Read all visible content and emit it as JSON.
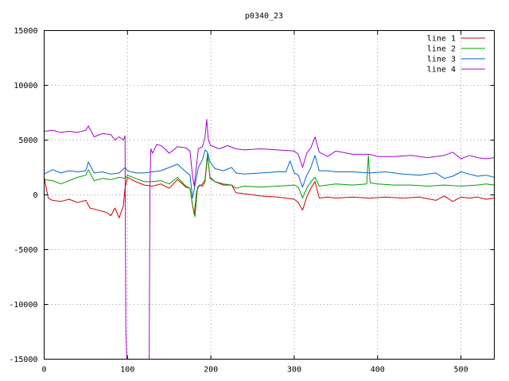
{
  "chart_data": {
    "type": "line",
    "title": "p0340_23",
    "xlabel": "",
    "ylabel": "",
    "xlim": [
      0,
      540
    ],
    "ylim": [
      -15000,
      15000
    ],
    "x_ticks": [
      0,
      100,
      200,
      300,
      400,
      500
    ],
    "y_ticks": [
      -15000,
      -10000,
      -5000,
      0,
      5000,
      10000,
      15000
    ],
    "grid": true,
    "legend_position": "top-right",
    "series": [
      {
        "name": "line 1",
        "color": "#cc0000",
        "points": [
          [
            0,
            1600
          ],
          [
            5,
            -300
          ],
          [
            10,
            -500
          ],
          [
            20,
            -600
          ],
          [
            30,
            -400
          ],
          [
            40,
            -700
          ],
          [
            50,
            -500
          ],
          [
            55,
            -1200
          ],
          [
            65,
            -1400
          ],
          [
            75,
            -1600
          ],
          [
            80,
            -1900
          ],
          [
            85,
            -1200
          ],
          [
            90,
            -2100
          ],
          [
            95,
            -1000
          ],
          [
            97,
            600
          ],
          [
            100,
            1600
          ],
          [
            110,
            1200
          ],
          [
            120,
            900
          ],
          [
            130,
            800
          ],
          [
            140,
            1000
          ],
          [
            150,
            600
          ],
          [
            160,
            1400
          ],
          [
            170,
            700
          ],
          [
            175,
            600
          ],
          [
            178,
            -900
          ],
          [
            180,
            -1800
          ],
          [
            183,
            300
          ],
          [
            186,
            900
          ],
          [
            190,
            800
          ],
          [
            193,
            1200
          ],
          [
            196,
            3600
          ],
          [
            199,
            1600
          ],
          [
            205,
            1200
          ],
          [
            215,
            900
          ],
          [
            225,
            900
          ],
          [
            230,
            200
          ],
          [
            240,
            100
          ],
          [
            260,
            -100
          ],
          [
            280,
            -200
          ],
          [
            300,
            -400
          ],
          [
            305,
            -700
          ],
          [
            310,
            -1400
          ],
          [
            315,
            -200
          ],
          [
            320,
            600
          ],
          [
            325,
            1200
          ],
          [
            330,
            -300
          ],
          [
            340,
            -200
          ],
          [
            350,
            -300
          ],
          [
            370,
            -200
          ],
          [
            390,
            -300
          ],
          [
            410,
            -200
          ],
          [
            430,
            -300
          ],
          [
            450,
            -200
          ],
          [
            470,
            -500
          ],
          [
            480,
            -100
          ],
          [
            490,
            -600
          ],
          [
            500,
            -200
          ],
          [
            510,
            -300
          ],
          [
            520,
            -200
          ],
          [
            530,
            -400
          ],
          [
            540,
            -300
          ]
        ]
      },
      {
        "name": "line 2",
        "color": "#00a000",
        "points": [
          [
            0,
            1400
          ],
          [
            10,
            1300
          ],
          [
            20,
            1000
          ],
          [
            30,
            1300
          ],
          [
            40,
            1600
          ],
          [
            50,
            1800
          ],
          [
            53,
            2300
          ],
          [
            60,
            1300
          ],
          [
            70,
            1500
          ],
          [
            80,
            1400
          ],
          [
            90,
            1600
          ],
          [
            97,
            1500
          ],
          [
            100,
            1800
          ],
          [
            110,
            1500
          ],
          [
            120,
            1200
          ],
          [
            130,
            1200
          ],
          [
            140,
            1300
          ],
          [
            150,
            1000
          ],
          [
            160,
            1600
          ],
          [
            170,
            800
          ],
          [
            175,
            600
          ],
          [
            178,
            -1000
          ],
          [
            181,
            -2000
          ],
          [
            184,
            700
          ],
          [
            190,
            1000
          ],
          [
            193,
            1400
          ],
          [
            196,
            3800
          ],
          [
            199,
            1500
          ],
          [
            205,
            1200
          ],
          [
            215,
            1000
          ],
          [
            225,
            900
          ],
          [
            230,
            600
          ],
          [
            240,
            800
          ],
          [
            260,
            700
          ],
          [
            280,
            800
          ],
          [
            300,
            900
          ],
          [
            305,
            700
          ],
          [
            310,
            -300
          ],
          [
            315,
            600
          ],
          [
            320,
            1200
          ],
          [
            325,
            1600
          ],
          [
            330,
            800
          ],
          [
            340,
            900
          ],
          [
            350,
            1000
          ],
          [
            370,
            900
          ],
          [
            387,
            1000
          ],
          [
            389,
            3600
          ],
          [
            391,
            1100
          ],
          [
            400,
            1000
          ],
          [
            420,
            900
          ],
          [
            440,
            900
          ],
          [
            460,
            800
          ],
          [
            480,
            900
          ],
          [
            500,
            800
          ],
          [
            520,
            900
          ],
          [
            530,
            1000
          ],
          [
            540,
            900
          ]
        ]
      },
      {
        "name": "line 3",
        "color": "#0066cc",
        "points": [
          [
            0,
            1900
          ],
          [
            10,
            2300
          ],
          [
            20,
            2000
          ],
          [
            30,
            2200
          ],
          [
            40,
            2100
          ],
          [
            50,
            2200
          ],
          [
            53,
            3000
          ],
          [
            60,
            2000
          ],
          [
            70,
            2100
          ],
          [
            80,
            1900
          ],
          [
            90,
            2000
          ],
          [
            97,
            2500
          ],
          [
            100,
            2200
          ],
          [
            110,
            2000
          ],
          [
            120,
            2000
          ],
          [
            130,
            2100
          ],
          [
            140,
            2200
          ],
          [
            150,
            2500
          ],
          [
            160,
            2800
          ],
          [
            170,
            2100
          ],
          [
            175,
            1800
          ],
          [
            178,
            -300
          ],
          [
            180,
            500
          ],
          [
            185,
            2500
          ],
          [
            190,
            3200
          ],
          [
            193,
            4100
          ],
          [
            196,
            3900
          ],
          [
            199,
            3000
          ],
          [
            205,
            2400
          ],
          [
            215,
            2200
          ],
          [
            225,
            2500
          ],
          [
            230,
            2000
          ],
          [
            240,
            1900
          ],
          [
            260,
            2000
          ],
          [
            280,
            2100
          ],
          [
            290,
            2100
          ],
          [
            295,
            3100
          ],
          [
            300,
            2000
          ],
          [
            305,
            1800
          ],
          [
            310,
            700
          ],
          [
            315,
            1800
          ],
          [
            320,
            2500
          ],
          [
            325,
            3600
          ],
          [
            330,
            2200
          ],
          [
            340,
            2200
          ],
          [
            350,
            2100
          ],
          [
            370,
            2100
          ],
          [
            390,
            2000
          ],
          [
            410,
            2100
          ],
          [
            430,
            1900
          ],
          [
            450,
            1800
          ],
          [
            470,
            2000
          ],
          [
            480,
            1500
          ],
          [
            490,
            1700
          ],
          [
            500,
            2100
          ],
          [
            510,
            1900
          ],
          [
            520,
            1700
          ],
          [
            530,
            1800
          ],
          [
            540,
            1600
          ]
        ]
      },
      {
        "name": "line 4",
        "color": "#aa00cc",
        "points": [
          [
            0,
            5800
          ],
          [
            10,
            5900
          ],
          [
            20,
            5700
          ],
          [
            30,
            5800
          ],
          [
            40,
            5700
          ],
          [
            50,
            5900
          ],
          [
            53,
            6300
          ],
          [
            60,
            5300
          ],
          [
            70,
            5600
          ],
          [
            80,
            5500
          ],
          [
            85,
            5000
          ],
          [
            90,
            5300
          ],
          [
            95,
            5000
          ],
          [
            97,
            5400
          ],
          [
            98,
            -12000
          ],
          [
            99,
            -15000
          ],
          [
            100,
            -15000
          ],
          [
            125,
            -15000
          ],
          [
            126,
            -15000
          ],
          [
            127,
            1000
          ],
          [
            128,
            4200
          ],
          [
            130,
            3800
          ],
          [
            135,
            4600
          ],
          [
            140,
            4500
          ],
          [
            145,
            4200
          ],
          [
            150,
            3800
          ],
          [
            160,
            4400
          ],
          [
            170,
            4300
          ],
          [
            175,
            4000
          ],
          [
            178,
            1700
          ],
          [
            180,
            800
          ],
          [
            185,
            4200
          ],
          [
            190,
            4400
          ],
          [
            193,
            5300
          ],
          [
            195,
            6900
          ],
          [
            197,
            5000
          ],
          [
            200,
            4500
          ],
          [
            210,
            4200
          ],
          [
            220,
            4500
          ],
          [
            230,
            4200
          ],
          [
            240,
            4100
          ],
          [
            260,
            4200
          ],
          [
            280,
            4100
          ],
          [
            300,
            4000
          ],
          [
            305,
            3700
          ],
          [
            310,
            2500
          ],
          [
            315,
            3800
          ],
          [
            320,
            4300
          ],
          [
            325,
            5300
          ],
          [
            330,
            3900
          ],
          [
            340,
            3500
          ],
          [
            350,
            4000
          ],
          [
            370,
            3700
          ],
          [
            390,
            3700
          ],
          [
            400,
            3500
          ],
          [
            420,
            3500
          ],
          [
            440,
            3600
          ],
          [
            460,
            3400
          ],
          [
            480,
            3600
          ],
          [
            490,
            3900
          ],
          [
            500,
            3300
          ],
          [
            510,
            3600
          ],
          [
            520,
            3400
          ],
          [
            530,
            3300
          ],
          [
            540,
            3400
          ]
        ]
      }
    ]
  }
}
